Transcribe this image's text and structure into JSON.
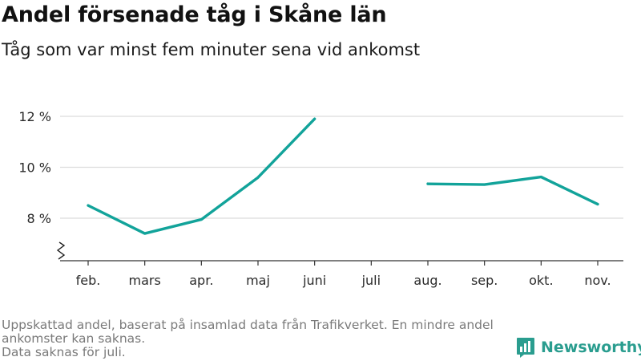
{
  "chart_data": {
    "type": "line",
    "title": "Andel försenade tåg i Skåne län",
    "subtitle": "Tåg som var minst fem minuter sena vid ankomst",
    "categories": [
      "feb.",
      "mars",
      "apr.",
      "maj",
      "juni",
      "juli",
      "aug.",
      "sep.",
      "okt.",
      "nov."
    ],
    "series": [
      {
        "values": [
          8.5,
          7.4,
          7.95,
          9.6,
          11.9,
          null,
          9.35,
          9.32,
          9.62,
          8.55
        ]
      }
    ],
    "ylim": [
      6.6,
      12.5
    ],
    "yticks": [
      8,
      10,
      12
    ],
    "ytick_labels": [
      "8 %",
      "10 %",
      "12 %"
    ],
    "y_axis_break": true,
    "grid": true,
    "xlabel": "",
    "ylabel": ""
  },
  "colors": {
    "line": "#12a39a",
    "grid": "#dcdcdc",
    "axis": "#333333",
    "brand": "#2a9d8f"
  },
  "footnotes": [
    "Uppskattad andel, baserat på insamlad data från Trafikverket. En mindre andel",
    "ankomster kan saknas.",
    "Data saknas för juli."
  ],
  "brand": {
    "name": "Newsworthy",
    "icon": "bar-chart-logo-icon"
  }
}
